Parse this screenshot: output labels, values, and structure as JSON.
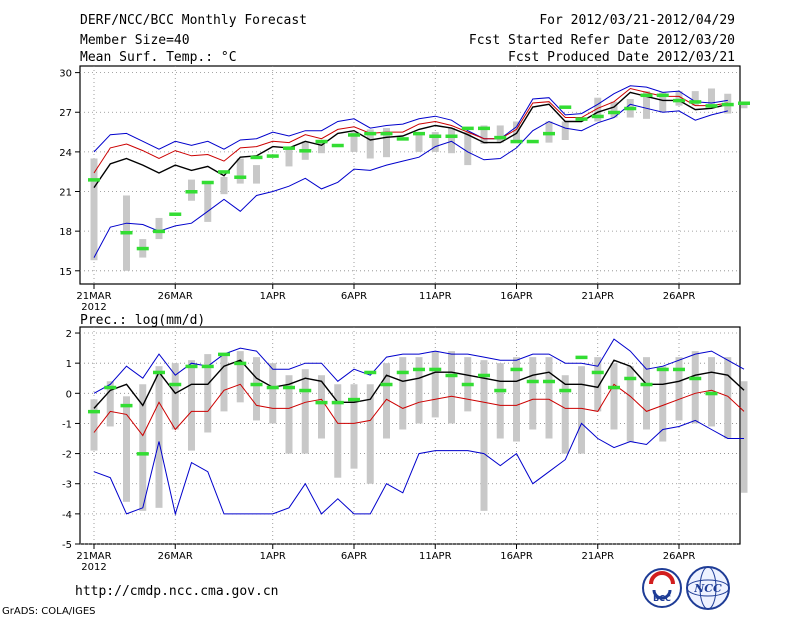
{
  "header": {
    "title": "DERF/NCC/BCC Monthly Forecast",
    "member_size": "Member Size=40",
    "variable1": "Mean Surf. Temp.: °C",
    "period": "For 2012/03/21-2012/04/29",
    "started": "Fcst Started Refer Date 2012/03/20",
    "produced": "Fcst Produced Date 2012/03/21"
  },
  "footer": {
    "url": "http://cmdp.ncc.cma.gov.cn",
    "grads": "GrADS: COLA/IGES",
    "logo_bcc": "BCC",
    "logo_ncc": "NCC"
  },
  "colors": {
    "mean": "#000000",
    "upper": "#0000cc",
    "lower": "#0000cc",
    "mid": "#cc0000",
    "box": "#c8c8c8",
    "marker": "#33dd33"
  },
  "chart_data": [
    {
      "type": "line",
      "title": "Mean Surf. Temp.: °C",
      "ylim": [
        14,
        30.5
      ],
      "yticks": [
        15,
        18,
        21,
        24,
        27,
        30
      ],
      "x_tick_labels": [
        "21MAR",
        "26MAR",
        "1APR",
        "6APR",
        "11APR",
        "16APR",
        "21APR",
        "26APR"
      ],
      "x_tick_days": [
        0,
        5,
        11,
        16,
        21,
        26,
        31,
        36
      ],
      "year_label": "2012",
      "days": 40,
      "series": [
        {
          "name": "ensemble mean",
          "values": [
            21.3,
            23.1,
            23.5,
            23.0,
            22.4,
            23.0,
            22.6,
            22.9,
            22.2,
            23.6,
            23.7,
            24.4,
            24.3,
            24.8,
            24.5,
            25.4,
            25.6,
            24.9,
            25.1,
            25.2,
            25.7,
            26.0,
            25.8,
            25.3,
            24.7,
            24.7,
            25.4,
            27.4,
            27.6,
            26.3,
            26.3,
            27.0,
            27.4,
            28.5,
            28.2,
            27.9,
            27.9,
            27.2,
            27.3,
            27.6
          ]
        },
        {
          "name": "upper bound",
          "values": [
            24.0,
            25.3,
            25.4,
            24.8,
            24.2,
            24.8,
            24.5,
            24.8,
            24.2,
            24.9,
            25.0,
            25.5,
            25.2,
            25.6,
            25.6,
            26.3,
            26.5,
            25.8,
            26.0,
            26.1,
            26.5,
            26.7,
            26.4,
            25.6,
            25.0,
            25.0,
            25.9,
            28.0,
            28.1,
            26.8,
            26.9,
            27.6,
            28.4,
            29.0,
            28.9,
            28.5,
            28.6,
            27.8,
            27.7,
            27.9
          ]
        },
        {
          "name": "lower bound",
          "values": [
            16.0,
            18.3,
            18.6,
            18.5,
            18.0,
            18.4,
            18.6,
            19.5,
            20.4,
            19.5,
            20.7,
            21.0,
            21.4,
            22.0,
            21.2,
            21.7,
            22.7,
            22.6,
            23.0,
            23.3,
            23.6,
            24.4,
            24.8,
            24.0,
            23.4,
            23.5,
            24.3,
            25.6,
            26.3,
            25.8,
            25.6,
            26.2,
            26.6,
            27.6,
            27.3,
            27.0,
            27.1,
            26.4,
            26.8,
            27.1
          ]
        },
        {
          "name": "red line",
          "values": [
            22.4,
            24.3,
            24.6,
            24.1,
            23.5,
            24.1,
            23.7,
            23.8,
            23.3,
            24.3,
            24.4,
            24.8,
            24.7,
            25.3,
            25.0,
            25.7,
            25.9,
            25.4,
            25.5,
            25.5,
            26.1,
            26.3,
            26.0,
            25.5,
            25.0,
            25.0,
            25.7,
            27.7,
            27.8,
            26.6,
            26.6,
            27.3,
            27.8,
            28.8,
            28.5,
            28.2,
            28.2,
            27.5,
            27.5,
            27.7
          ]
        }
      ],
      "boxes": [
        [
          0,
          15.8,
          23.5
        ],
        [
          2,
          15.0,
          20.7
        ],
        [
          3,
          16.0,
          17.4
        ],
        [
          4,
          17.4,
          19.0
        ],
        [
          6,
          20.3,
          21.9
        ],
        [
          7,
          18.7,
          21.6
        ],
        [
          8,
          20.8,
          22.1
        ],
        [
          9,
          21.6,
          23.5
        ],
        [
          10,
          21.6,
          23.0
        ],
        [
          12,
          22.9,
          24.2
        ],
        [
          13,
          23.4,
          24.8
        ],
        [
          14,
          23.9,
          24.8
        ],
        [
          16,
          24.0,
          25.5
        ],
        [
          17,
          23.5,
          25.7
        ],
        [
          18,
          23.6,
          25.8
        ],
        [
          20,
          24.0,
          25.5
        ],
        [
          21,
          24.0,
          25.5
        ],
        [
          22,
          23.9,
          25.8
        ],
        [
          23,
          23.0,
          25.5
        ],
        [
          24,
          24.6,
          26.0
        ],
        [
          25,
          24.7,
          26.0
        ],
        [
          26,
          24.7,
          26.3
        ],
        [
          28,
          24.7,
          26.3
        ],
        [
          29,
          24.9,
          26.3
        ],
        [
          31,
          26.3,
          28.1
        ],
        [
          32,
          26.6,
          27.8
        ],
        [
          33,
          26.6,
          28.0
        ],
        [
          34,
          26.5,
          28.6
        ],
        [
          35,
          27.0,
          28.5
        ],
        [
          36,
          27.5,
          28.6
        ],
        [
          37,
          27.5,
          28.6
        ],
        [
          38,
          27.6,
          28.8
        ],
        [
          39,
          26.9,
          28.4
        ],
        [
          40,
          27.3,
          27.8
        ]
      ],
      "markers": [
        [
          0,
          21.9
        ],
        [
          2,
          17.9
        ],
        [
          3,
          16.7
        ],
        [
          4,
          18.0
        ],
        [
          5,
          19.3
        ],
        [
          6,
          21.0
        ],
        [
          7,
          21.7
        ],
        [
          8,
          22.5
        ],
        [
          9,
          22.1
        ],
        [
          10,
          23.6
        ],
        [
          11,
          23.7
        ],
        [
          12,
          24.3
        ],
        [
          13,
          24.1
        ],
        [
          14,
          24.8
        ],
        [
          15,
          24.5
        ],
        [
          16,
          25.3
        ],
        [
          17,
          25.4
        ],
        [
          18,
          25.4
        ],
        [
          19,
          25.0
        ],
        [
          20,
          25.4
        ],
        [
          21,
          25.2
        ],
        [
          22,
          25.2
        ],
        [
          23,
          25.8
        ],
        [
          24,
          25.8
        ],
        [
          25,
          25.1
        ],
        [
          26,
          24.8
        ],
        [
          27,
          24.8
        ],
        [
          28,
          25.4
        ],
        [
          29,
          27.4
        ],
        [
          30,
          26.5
        ],
        [
          31,
          26.7
        ],
        [
          32,
          27.0
        ],
        [
          33,
          27.3
        ],
        [
          34,
          28.3
        ],
        [
          35,
          28.3
        ],
        [
          36,
          27.9
        ],
        [
          37,
          27.8
        ],
        [
          38,
          27.5
        ],
        [
          39,
          27.6
        ],
        [
          40,
          27.7
        ]
      ]
    },
    {
      "type": "line",
      "title": "Prec.: log(mm/d)",
      "ylim": [
        -5,
        2.2
      ],
      "yticks": [
        -5,
        -4,
        -3,
        -2,
        -1,
        0,
        1,
        2
      ],
      "x_tick_labels": [
        "21MAR",
        "26MAR",
        "1APR",
        "6APR",
        "11APR",
        "16APR",
        "21APR",
        "26APR"
      ],
      "x_tick_days": [
        0,
        5,
        11,
        16,
        21,
        26,
        31,
        36
      ],
      "year_label": "2012",
      "days": 40,
      "series": [
        {
          "name": "ensemble mean",
          "values": [
            -0.5,
            0.1,
            0.3,
            -0.4,
            0.7,
            0.0,
            0.3,
            0.3,
            0.9,
            1.1,
            0.5,
            0.2,
            0.3,
            0.5,
            0.4,
            -0.3,
            -0.3,
            -0.2,
            0.6,
            0.4,
            0.5,
            0.7,
            0.7,
            0.6,
            0.5,
            0.4,
            0.4,
            0.6,
            0.7,
            0.3,
            0.3,
            0.2,
            1.1,
            0.9,
            0.3,
            0.3,
            0.4,
            0.6,
            0.7,
            0.6,
            0.1
          ]
        },
        {
          "name": "upper bound",
          "values": [
            0.0,
            0.3,
            0.9,
            0.5,
            1.3,
            0.6,
            1.0,
            0.9,
            1.3,
            1.5,
            1.4,
            0.8,
            0.8,
            1.0,
            1.0,
            0.4,
            0.8,
            0.6,
            1.2,
            1.3,
            1.3,
            1.4,
            1.3,
            1.3,
            1.2,
            1.1,
            1.1,
            1.3,
            1.3,
            1.0,
            1.0,
            0.9,
            1.8,
            1.4,
            0.8,
            0.9,
            1.1,
            1.3,
            1.4,
            1.1,
            0.8
          ]
        },
        {
          "name": "lower bound",
          "values": [
            -2.6,
            -2.8,
            -4.0,
            -3.8,
            -1.6,
            -4.0,
            -2.3,
            -2.6,
            -4.0,
            -4.0,
            -4.0,
            -4.0,
            -3.8,
            -3.0,
            -4.0,
            -3.5,
            -4.0,
            -4.0,
            -3.0,
            -3.3,
            -2.0,
            -1.9,
            -1.9,
            -1.9,
            -2.0,
            -2.4,
            -2.0,
            -3.0,
            -2.6,
            -2.2,
            -1.0,
            -1.5,
            -1.8,
            -1.6,
            -1.7,
            -1.2,
            -1.1,
            -0.9,
            -1.2,
            -1.5,
            -1.5
          ]
        },
        {
          "name": "red line",
          "values": [
            -1.3,
            -0.6,
            -0.7,
            -1.4,
            -0.3,
            -1.2,
            -0.6,
            -0.6,
            0.1,
            0.3,
            -0.4,
            -0.5,
            -0.5,
            -0.3,
            -0.2,
            -1.0,
            -1.0,
            -0.9,
            -0.2,
            -0.5,
            -0.3,
            -0.2,
            -0.1,
            -0.2,
            -0.3,
            -0.4,
            -0.4,
            -0.2,
            -0.2,
            -0.5,
            -0.5,
            -0.6,
            0.3,
            -0.1,
            -0.6,
            -0.4,
            -0.2,
            0.0,
            0.1,
            -0.1,
            -0.6
          ]
        }
      ],
      "boxes": [
        [
          0,
          -1.9,
          -0.2
        ],
        [
          1,
          -1.1,
          0.4
        ],
        [
          2,
          -3.6,
          -0.1
        ],
        [
          3,
          -3.9,
          0.3
        ],
        [
          4,
          -3.8,
          0.9
        ],
        [
          5,
          -1.2,
          1.0
        ],
        [
          6,
          -1.9,
          1.1
        ],
        [
          7,
          -1.3,
          1.3
        ],
        [
          8,
          -0.6,
          1.3
        ],
        [
          9,
          -0.3,
          1.4
        ],
        [
          10,
          -0.9,
          1.2
        ],
        [
          11,
          -1.0,
          1.0
        ],
        [
          12,
          -2.0,
          0.6
        ],
        [
          13,
          -2.0,
          0.8
        ],
        [
          14,
          -1.5,
          0.6
        ],
        [
          15,
          -2.8,
          0.3
        ],
        [
          16,
          -2.5,
          0.3
        ],
        [
          17,
          -3.0,
          0.3
        ],
        [
          18,
          -1.5,
          1.0
        ],
        [
          19,
          -1.2,
          1.2
        ],
        [
          20,
          -1.0,
          1.2
        ],
        [
          21,
          -0.8,
          1.4
        ],
        [
          22,
          -1.0,
          1.4
        ],
        [
          23,
          -0.6,
          1.2
        ],
        [
          24,
          -3.9,
          1.1
        ],
        [
          25,
          -1.5,
          1.0
        ],
        [
          26,
          -1.6,
          1.2
        ],
        [
          27,
          -1.2,
          1.2
        ],
        [
          28,
          -1.5,
          1.2
        ],
        [
          29,
          -2.0,
          0.6
        ],
        [
          30,
          -2.0,
          0.9
        ],
        [
          31,
          -0.6,
          1.2
        ],
        [
          32,
          -1.2,
          1.0
        ],
        [
          33,
          -1.6,
          0.9
        ],
        [
          34,
          -1.2,
          1.2
        ],
        [
          35,
          -1.6,
          0.9
        ],
        [
          36,
          -0.9,
          1.2
        ],
        [
          37,
          -1.0,
          1.4
        ],
        [
          38,
          -1.1,
          1.2
        ],
        [
          39,
          -1.5,
          1.2
        ],
        [
          40,
          -3.3,
          0.4
        ]
      ],
      "markers": [
        [
          0,
          -0.6
        ],
        [
          1,
          0.2
        ],
        [
          2,
          -0.4
        ],
        [
          3,
          -2.0
        ],
        [
          4,
          0.7
        ],
        [
          5,
          0.3
        ],
        [
          6,
          0.9
        ],
        [
          7,
          0.9
        ],
        [
          8,
          1.3
        ],
        [
          9,
          1.0
        ],
        [
          10,
          0.3
        ],
        [
          11,
          0.2
        ],
        [
          12,
          0.2
        ],
        [
          13,
          0.1
        ],
        [
          14,
          -0.3
        ],
        [
          15,
          -0.3
        ],
        [
          16,
          -0.2
        ],
        [
          17,
          0.7
        ],
        [
          18,
          0.3
        ],
        [
          19,
          0.7
        ],
        [
          20,
          0.8
        ],
        [
          21,
          0.8
        ],
        [
          22,
          0.6
        ],
        [
          23,
          0.3
        ],
        [
          24,
          0.6
        ],
        [
          25,
          0.1
        ],
        [
          26,
          0.8
        ],
        [
          27,
          0.4
        ],
        [
          28,
          0.4
        ],
        [
          29,
          0.1
        ],
        [
          30,
          1.2
        ],
        [
          31,
          0.7
        ],
        [
          32,
          0.2
        ],
        [
          33,
          0.5
        ],
        [
          34,
          0.3
        ],
        [
          35,
          0.8
        ],
        [
          36,
          0.8
        ],
        [
          37,
          0.5
        ],
        [
          38,
          0.0
        ]
      ]
    }
  ]
}
